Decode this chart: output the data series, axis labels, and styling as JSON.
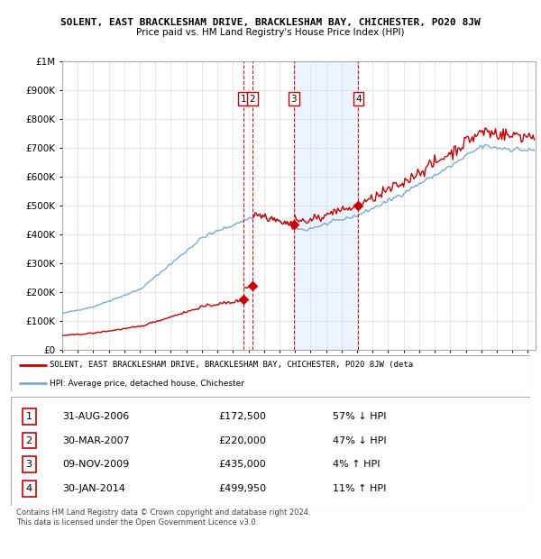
{
  "title": "SOLENT, EAST BRACKLESHAM DRIVE, BRACKLESHAM BAY, CHICHESTER, PO20 8JW",
  "subtitle": "Price paid vs. HM Land Registry's House Price Index (HPI)",
  "transactions": [
    {
      "num": 1,
      "date_str": "31-AUG-2006",
      "year": 2006.667,
      "price": 172500,
      "pct": "57% ↓ HPI"
    },
    {
      "num": 2,
      "date_str": "30-MAR-2007",
      "year": 2007.25,
      "price": 220000,
      "pct": "47% ↓ HPI"
    },
    {
      "num": 3,
      "date_str": "09-NOV-2009",
      "year": 2009.917,
      "price": 435000,
      "pct": "4% ↑ HPI"
    },
    {
      "num": 4,
      "date_str": "30-JAN-2014",
      "year": 2014.083,
      "price": 499950,
      "pct": "11% ↑ HPI"
    }
  ],
  "legend_red": "SOLENT, EAST BRACKLESHAM DRIVE, BRACKLESHAM BAY, CHICHESTER, PO20 8JW (deta",
  "legend_blue": "HPI: Average price, detached house, Chichester",
  "footer": "Contains HM Land Registry data © Crown copyright and database right 2024.\nThis data is licensed under the Open Government Licence v3.0.",
  "red_color": "#cc0000",
  "blue_color": "#7aadce",
  "shade_color": "#ddeeff",
  "ylim": [
    0,
    1000000
  ],
  "yticks": [
    0,
    100000,
    200000,
    300000,
    400000,
    500000,
    600000,
    700000,
    800000,
    900000,
    1000000
  ],
  "xmin": 1995,
  "xmax": 2025.5,
  "shade_start": 2009.917,
  "shade_end": 2014.083
}
